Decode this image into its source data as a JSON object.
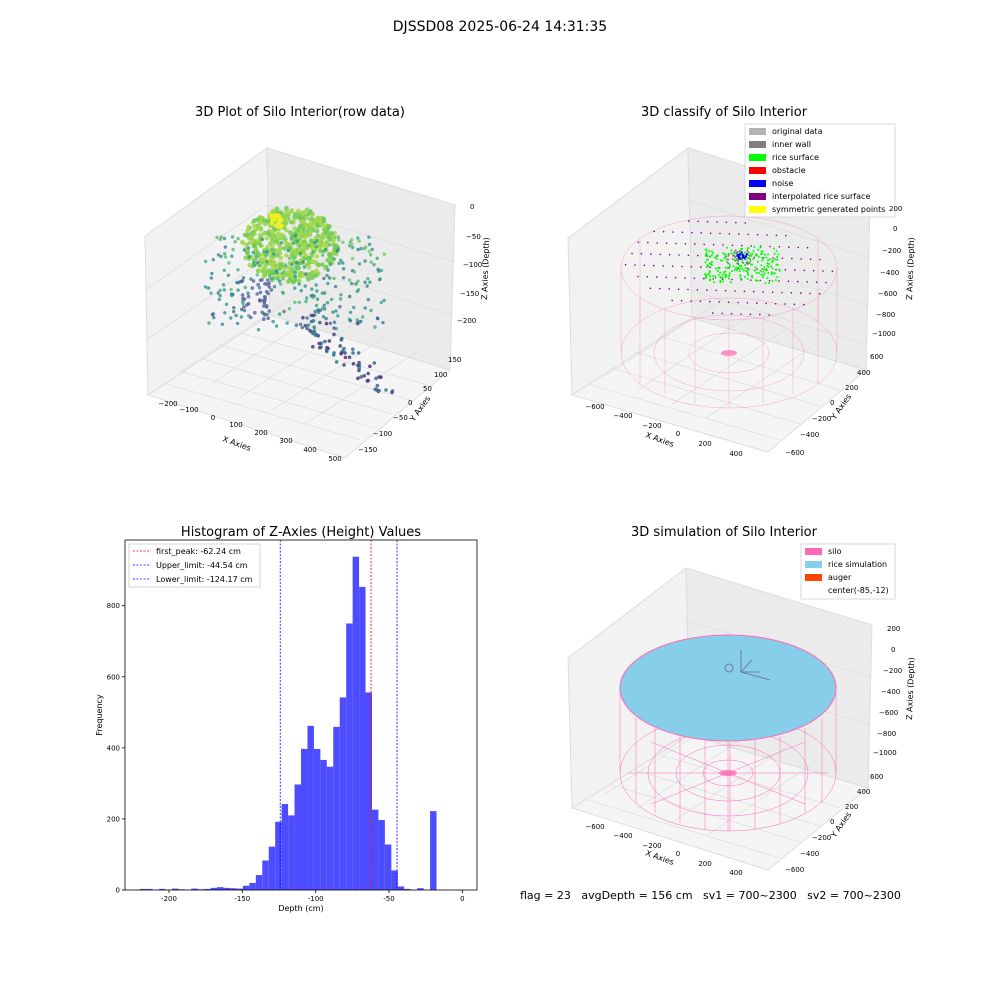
{
  "figure": {
    "title": "DJSSD08 2025-06-24 14:31:35",
    "footer": "flag = 23   avgDepth = 156 cm   sv1 = 700~2300   sv2 = 700~2300"
  },
  "colors": {
    "original_data": "#b3b3b3",
    "inner_wall": "#808080",
    "rice_surface": "#00ff00",
    "obstacle": "#ff0000",
    "noise": "#0000ff",
    "interpolated_rice_surface": "#800080",
    "symmetric_generated_points": "#ffff00",
    "silo": "#ff69b4",
    "rice_simulation": "#87ceeb",
    "auger": "#ff4500",
    "hist_bar": "#4d4dff"
  },
  "chart_data": [
    {
      "type": "scatter",
      "title": "3D Plot of Silo Interior(row data)",
      "xlabel": "X Axies",
      "ylabel": "Y Axies",
      "zlabel": "Z Axies (Depth)",
      "x_ticks": [
        "−200",
        "−100",
        "0",
        "100",
        "200",
        "300",
        "400",
        "500"
      ],
      "y_ticks": [
        "−150",
        "−100",
        "−50",
        "0",
        "50",
        "100",
        "150"
      ],
      "z_ticks": [
        "0",
        "−50",
        "−100",
        "−150",
        "−200"
      ]
    },
    {
      "type": "scatter",
      "title": "3D classify of Silo Interior",
      "xlabel": "X Axies",
      "ylabel": "Y Axies",
      "zlabel": "Z Axies (Depth)",
      "x_ticks": [
        "−600",
        "−400",
        "−200",
        "0",
        "200",
        "400"
      ],
      "y_ticks": [
        "−600",
        "−400",
        "−200",
        "0",
        "200",
        "400",
        "600"
      ],
      "z_ticks": [
        "200",
        "0",
        "−200",
        "−400",
        "−600",
        "−800",
        "−1000"
      ],
      "legend": [
        "original data",
        "inner wall",
        "rice surface",
        "obstacle",
        "noise",
        "interpolated rice surface",
        "symmetric generated points"
      ],
      "legend_loc": "upper right"
    },
    {
      "type": "bar",
      "title": "Histogram of Z-Axies (Height) Values",
      "xlabel": "Depth (cm)",
      "ylabel": "Frequency",
      "xlim": [
        -230,
        10
      ],
      "ylim": [
        0,
        985
      ],
      "x_ticks": [
        -200,
        -150,
        -100,
        -50,
        0
      ],
      "y_ticks": [
        0,
        200,
        400,
        600,
        800
      ],
      "bin_start": -220,
      "bin_width": 4.4,
      "values": [
        3,
        3,
        0,
        3,
        0,
        4,
        2,
        0,
        4,
        2,
        3,
        6,
        8,
        6,
        5,
        4,
        12,
        20,
        42,
        83,
        122,
        192,
        242,
        210,
        297,
        397,
        462,
        397,
        366,
        347,
        459,
        542,
        750,
        938,
        853,
        556,
        226,
        197,
        128,
        55,
        10,
        3,
        0,
        5,
        0,
        222
      ],
      "vlines": [
        {
          "value": -62.24,
          "label": "first_peak: -62.24 cm",
          "color": "#ff0000"
        },
        {
          "value": -44.54,
          "label": "Upper_limit: -44.54 cm",
          "color": "#0000ff"
        },
        {
          "value": -124.17,
          "label": "Lower_limit: -124.17 cm",
          "color": "#0000ff"
        }
      ],
      "legend_loc": "upper left"
    },
    {
      "type": "scatter",
      "title": "3D simulation of Silo Interior",
      "xlabel": "X Axies",
      "ylabel": "Y Axies",
      "zlabel": "Z Axies (Depth)",
      "x_ticks": [
        "−600",
        "−400",
        "−200",
        "0",
        "200",
        "400"
      ],
      "y_ticks": [
        "−600",
        "−400",
        "−200",
        "0",
        "200",
        "400",
        "600"
      ],
      "z_ticks": [
        "200",
        "0",
        "−200",
        "−400",
        "−600",
        "−800",
        "−1000"
      ],
      "legend": [
        "silo",
        "rice simulation",
        "auger",
        "center(-85,-12)"
      ],
      "legend_loc": "upper right"
    }
  ]
}
